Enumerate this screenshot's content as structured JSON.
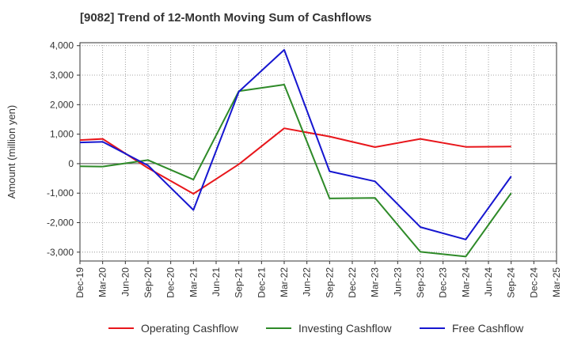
{
  "chart_data": {
    "type": "line",
    "title": "[9082]  Trend of 12-Month Moving Sum of Cashflows",
    "xlabel": "",
    "ylabel": "Amount (million yen)",
    "ylim": [
      -3300,
      4100
    ],
    "yticks": [
      4000,
      3000,
      2000,
      1000,
      0,
      -1000,
      -2000,
      -3000
    ],
    "ytick_labels": [
      "4,000",
      "3,000",
      "2,000",
      "1,000",
      "0",
      "-1,000",
      "-2,000",
      "-3,000"
    ],
    "categories": [
      "Dec-19",
      "Mar-20",
      "Jun-20",
      "Sep-20",
      "Dec-20",
      "Mar-21",
      "Jun-21",
      "Sep-21",
      "Dec-21",
      "Mar-22",
      "Jun-22",
      "Sep-22",
      "Dec-22",
      "Mar-23",
      "Jun-23",
      "Sep-23",
      "Dec-23",
      "Mar-24",
      "Jun-24",
      "Sep-24",
      "Dec-24",
      "Mar-25"
    ],
    "grid": true,
    "legend_position": "bottom",
    "series": [
      {
        "name": "Operating Cashflow",
        "color": "#e8161b",
        "points": [
          [
            "Dec-19",
            800
          ],
          [
            "Mar-20",
            840
          ],
          [
            "Sep-20",
            -150
          ],
          [
            "Mar-21",
            -1020
          ],
          [
            "Sep-21",
            -20
          ],
          [
            "Mar-22",
            1200
          ],
          [
            "Sep-22",
            920
          ],
          [
            "Mar-23",
            560
          ],
          [
            "Sep-23",
            840
          ],
          [
            "Mar-24",
            570
          ],
          [
            "Sep-24",
            580
          ]
        ]
      },
      {
        "name": "Investing Cashflow",
        "color": "#2e8a28",
        "points": [
          [
            "Dec-19",
            -90
          ],
          [
            "Mar-20",
            -100
          ],
          [
            "Sep-20",
            120
          ],
          [
            "Mar-21",
            -540
          ],
          [
            "Sep-21",
            2460
          ],
          [
            "Mar-22",
            2680
          ],
          [
            "Sep-22",
            -1180
          ],
          [
            "Mar-23",
            -1160
          ],
          [
            "Sep-23",
            -2990
          ],
          [
            "Mar-24",
            -3150
          ],
          [
            "Sep-24",
            -1000
          ]
        ]
      },
      {
        "name": "Free Cashflow",
        "color": "#1616d0",
        "points": [
          [
            "Dec-19",
            720
          ],
          [
            "Mar-20",
            740
          ],
          [
            "Sep-20",
            -60
          ],
          [
            "Mar-21",
            -1570
          ],
          [
            "Sep-21",
            2440
          ],
          [
            "Mar-22",
            3860
          ],
          [
            "Sep-22",
            -260
          ],
          [
            "Mar-23",
            -600
          ],
          [
            "Sep-23",
            -2150
          ],
          [
            "Mar-24",
            -2570
          ],
          [
            "Sep-24",
            -430
          ]
        ]
      }
    ]
  }
}
